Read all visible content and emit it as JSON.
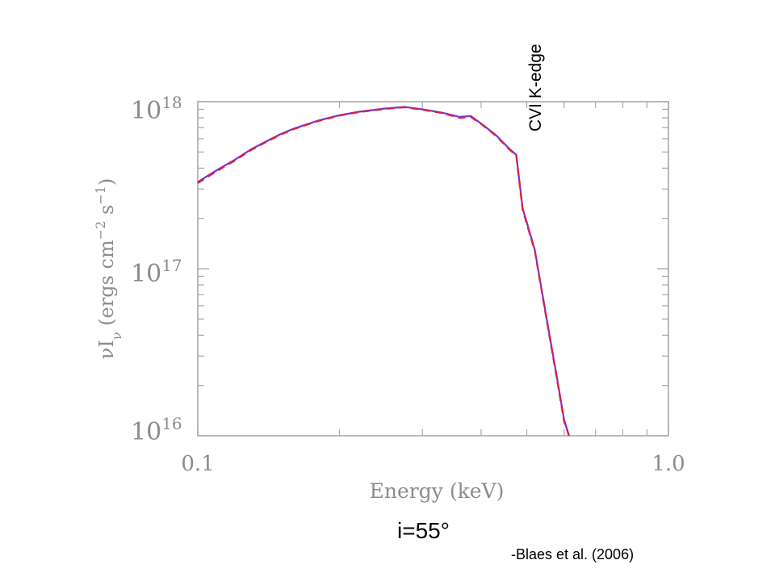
{
  "chart_data": {
    "type": "line",
    "title": "",
    "xlabel": "Energy (keV)",
    "ylabel_parts": {
      "symbol": "νI",
      "subscript": "ν",
      "units_open": " (ergs cm",
      "exp1": "−2",
      "mid": " s",
      "exp2": "−1",
      "close": ")"
    },
    "x_scale": "log",
    "y_scale": "log",
    "xlim": [
      0.1,
      1.0
    ],
    "ylim": [
      1e+16,
      1e+18
    ],
    "x_ticks": [
      {
        "value": 0.1,
        "label": "0.1"
      },
      {
        "value": 1.0,
        "label": "1.0"
      }
    ],
    "y_ticks": [
      {
        "value": 1e+16,
        "base": "10",
        "exp": "16"
      },
      {
        "value": 1e+17,
        "base": "10",
        "exp": "17"
      },
      {
        "value": 1e+18,
        "base": "10",
        "exp": "18"
      }
    ],
    "grid": false,
    "series": [
      {
        "style": "solid",
        "color": "#7b2fd6",
        "x": [
          0.1,
          0.105,
          0.11,
          0.12,
          0.13,
          0.14,
          0.15,
          0.16,
          0.18,
          0.2,
          0.22,
          0.25,
          0.275,
          0.3,
          0.33,
          0.36,
          0.38,
          0.4,
          0.43,
          0.46,
          0.475,
          0.49,
          0.52,
          0.55,
          0.58,
          0.6,
          0.615
        ],
        "y": [
          3.3e+17,
          3.6e+17,
          3.9e+17,
          4.5e+17,
          5.2e+17,
          5.8e+17,
          6.4e+17,
          6.9e+17,
          7.7e+17,
          8.3e+17,
          8.7e+17,
          9.1e+17,
          9.3e+17,
          9e+17,
          8.6e+17,
          8.1e+17,
          8.2e+17,
          7.4e+17,
          6.3e+17,
          5.2e+17,
          4.8e+17,
          2.3e+17,
          1.3e+17,
          5.2e+16,
          2.2e+16,
          1.25e+16,
          1e+16
        ]
      },
      {
        "style": "dashed",
        "color": "#e0203a",
        "x": [
          0.1,
          0.105,
          0.11,
          0.12,
          0.13,
          0.14,
          0.15,
          0.16,
          0.18,
          0.2,
          0.22,
          0.25,
          0.275,
          0.3,
          0.33,
          0.36,
          0.38,
          0.4,
          0.43,
          0.46,
          0.475,
          0.49,
          0.52,
          0.55,
          0.58,
          0.6,
          0.615
        ],
        "y": [
          3.25e+17,
          3.55e+17,
          3.85e+17,
          4.45e+17,
          5.15e+17,
          5.75e+17,
          6.35e+17,
          6.85e+17,
          7.65e+17,
          8.25e+17,
          8.65e+17,
          9.05e+17,
          9.25e+17,
          8.95e+17,
          8.55e+17,
          8e+17,
          8.1e+17,
          7.35e+17,
          6.25e+17,
          5.15e+17,
          4.75e+17,
          2.25e+17,
          1.28e+17,
          5.1e+16,
          2.15e+16,
          1.22e+16,
          1e+16
        ]
      }
    ],
    "annotations": {
      "edge_label": "CVI K-edge",
      "edge_energy_keV": 0.49,
      "inclination": "i=55°",
      "citation": "-Blaes et al. (2006)"
    }
  }
}
